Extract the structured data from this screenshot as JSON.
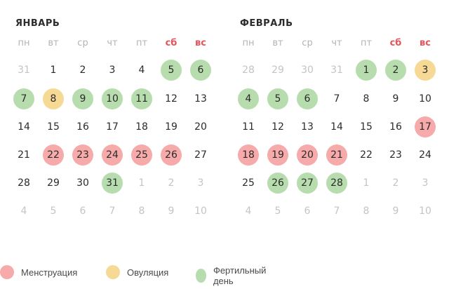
{
  "colors": {
    "menstruation": "#f7aaaa",
    "ovulation": "#f6d995",
    "fertile": "#b7dcae",
    "weekend_header": "#e5545a"
  },
  "weekdays": [
    "пн",
    "вт",
    "ср",
    "чт",
    "пт",
    "сб",
    "вс"
  ],
  "months": [
    {
      "title": "ЯНВАРЬ",
      "weeks": [
        [
          {
            "d": "31",
            "t": "other"
          },
          {
            "d": "1"
          },
          {
            "d": "2"
          },
          {
            "d": "3"
          },
          {
            "d": "4"
          },
          {
            "d": "5",
            "t": "f"
          },
          {
            "d": "6",
            "t": "f"
          }
        ],
        [
          {
            "d": "7",
            "t": "f"
          },
          {
            "d": "8",
            "t": "o"
          },
          {
            "d": "9",
            "t": "f"
          },
          {
            "d": "10",
            "t": "f"
          },
          {
            "d": "11",
            "t": "f"
          },
          {
            "d": "12"
          },
          {
            "d": "13"
          }
        ],
        [
          {
            "d": "14"
          },
          {
            "d": "15"
          },
          {
            "d": "16"
          },
          {
            "d": "17"
          },
          {
            "d": "18"
          },
          {
            "d": "19"
          },
          {
            "d": "20"
          }
        ],
        [
          {
            "d": "21"
          },
          {
            "d": "22",
            "t": "m"
          },
          {
            "d": "23",
            "t": "m"
          },
          {
            "d": "24",
            "t": "m"
          },
          {
            "d": "25",
            "t": "m"
          },
          {
            "d": "26",
            "t": "m"
          },
          {
            "d": "27"
          }
        ],
        [
          {
            "d": "28"
          },
          {
            "d": "29"
          },
          {
            "d": "30"
          },
          {
            "d": "31",
            "t": "f"
          },
          {
            "d": "1",
            "t": "other"
          },
          {
            "d": "2",
            "t": "other"
          },
          {
            "d": "3",
            "t": "other"
          }
        ],
        [
          {
            "d": "4",
            "t": "other"
          },
          {
            "d": "5",
            "t": "other"
          },
          {
            "d": "6",
            "t": "other"
          },
          {
            "d": "7",
            "t": "other"
          },
          {
            "d": "8",
            "t": "other"
          },
          {
            "d": "9",
            "t": "other"
          },
          {
            "d": "10",
            "t": "other"
          }
        ]
      ]
    },
    {
      "title": "ФЕВРАЛЬ",
      "weeks": [
        [
          {
            "d": "28",
            "t": "other"
          },
          {
            "d": "29",
            "t": "other"
          },
          {
            "d": "30",
            "t": "other"
          },
          {
            "d": "31",
            "t": "other"
          },
          {
            "d": "1",
            "t": "f"
          },
          {
            "d": "2",
            "t": "f"
          },
          {
            "d": "3",
            "t": "o"
          }
        ],
        [
          {
            "d": "4",
            "t": "f"
          },
          {
            "d": "5",
            "t": "f"
          },
          {
            "d": "6",
            "t": "f"
          },
          {
            "d": "7"
          },
          {
            "d": "8"
          },
          {
            "d": "9"
          },
          {
            "d": "10"
          }
        ],
        [
          {
            "d": "11"
          },
          {
            "d": "12"
          },
          {
            "d": "13"
          },
          {
            "d": "14"
          },
          {
            "d": "15"
          },
          {
            "d": "16"
          },
          {
            "d": "17",
            "t": "m"
          }
        ],
        [
          {
            "d": "18",
            "t": "m"
          },
          {
            "d": "19",
            "t": "m"
          },
          {
            "d": "20",
            "t": "m"
          },
          {
            "d": "21",
            "t": "m"
          },
          {
            "d": "22"
          },
          {
            "d": "23"
          },
          {
            "d": "24"
          }
        ],
        [
          {
            "d": "25"
          },
          {
            "d": "26",
            "t": "f"
          },
          {
            "d": "27",
            "t": "f"
          },
          {
            "d": "28",
            "t": "f"
          },
          {
            "d": "1",
            "t": "other"
          },
          {
            "d": "2",
            "t": "other"
          },
          {
            "d": "3",
            "t": "other"
          }
        ],
        [
          {
            "d": "4",
            "t": "other"
          },
          {
            "d": "5",
            "t": "other"
          },
          {
            "d": "6",
            "t": "other"
          },
          {
            "d": "7",
            "t": "other"
          },
          {
            "d": "8",
            "t": "other"
          },
          {
            "d": "9",
            "t": "other"
          },
          {
            "d": "10",
            "t": "other"
          }
        ]
      ]
    }
  ],
  "legend": [
    {
      "label": "Менструация",
      "type": "m"
    },
    {
      "label": "Овуляция",
      "type": "o"
    },
    {
      "label": "Фертильный день",
      "type": "f"
    }
  ]
}
